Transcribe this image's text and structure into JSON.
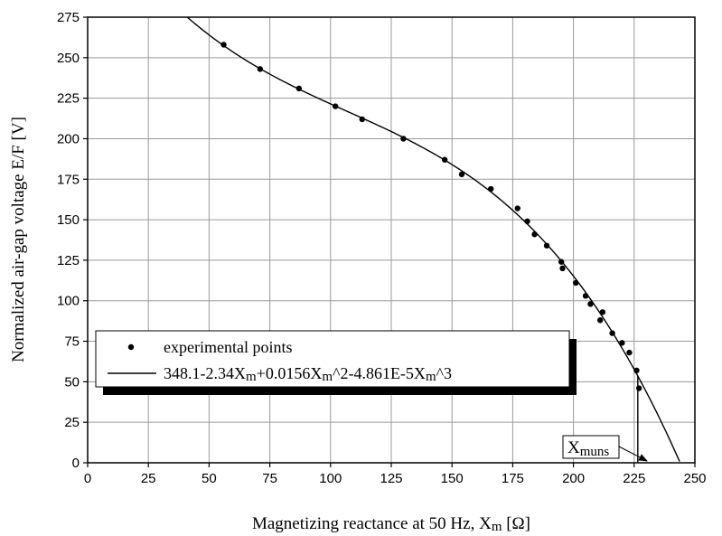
{
  "chart_data": {
    "type": "scatter",
    "xlabel": "Magnetizing reactance at 50 Hz, X",
    "xlabel_sub": "m",
    "xlabel_unit": " [Ω]",
    "ylabel": "Normalized air-gap voltage E/F [V]",
    "xlim": [
      0,
      250
    ],
    "ylim": [
      0,
      275
    ],
    "xticks": [
      0,
      25,
      50,
      75,
      100,
      125,
      150,
      175,
      200,
      225,
      250
    ],
    "yticks": [
      0,
      25,
      50,
      75,
      100,
      125,
      150,
      175,
      200,
      225,
      250,
      275
    ],
    "grid": true,
    "legend_position": "lower-left",
    "series": [
      {
        "name": "experimental points",
        "kind": "scatter",
        "x": [
          56,
          71,
          87,
          102,
          113,
          130,
          147,
          154,
          166,
          177,
          181,
          184,
          189,
          195,
          195.5,
          201,
          205,
          207,
          211,
          212,
          216,
          220,
          223,
          226,
          227
        ],
        "y": [
          258,
          243,
          231,
          220,
          212,
          200,
          187,
          178,
          169,
          157,
          149,
          141,
          134,
          124,
          120,
          111,
          103,
          98,
          88,
          93,
          80,
          74,
          68,
          57,
          46
        ]
      },
      {
        "name": "348.1-2.34Xm+0.0156Xm^2-4.861E-5Xm^3",
        "name_parts": [
          "348.1-2.34X",
          "m",
          "+0.0156X",
          "m",
          "^2-4.861E-5X",
          "m",
          "^3"
        ],
        "kind": "line",
        "coefficients": [
          348.1,
          -2.34,
          0.0156,
          -4.861e-05
        ],
        "x_range": [
          38,
          243.7
        ]
      }
    ],
    "annotations": [
      {
        "text": "X",
        "sub": "muns",
        "x": 226.5,
        "y": 0
      }
    ]
  }
}
